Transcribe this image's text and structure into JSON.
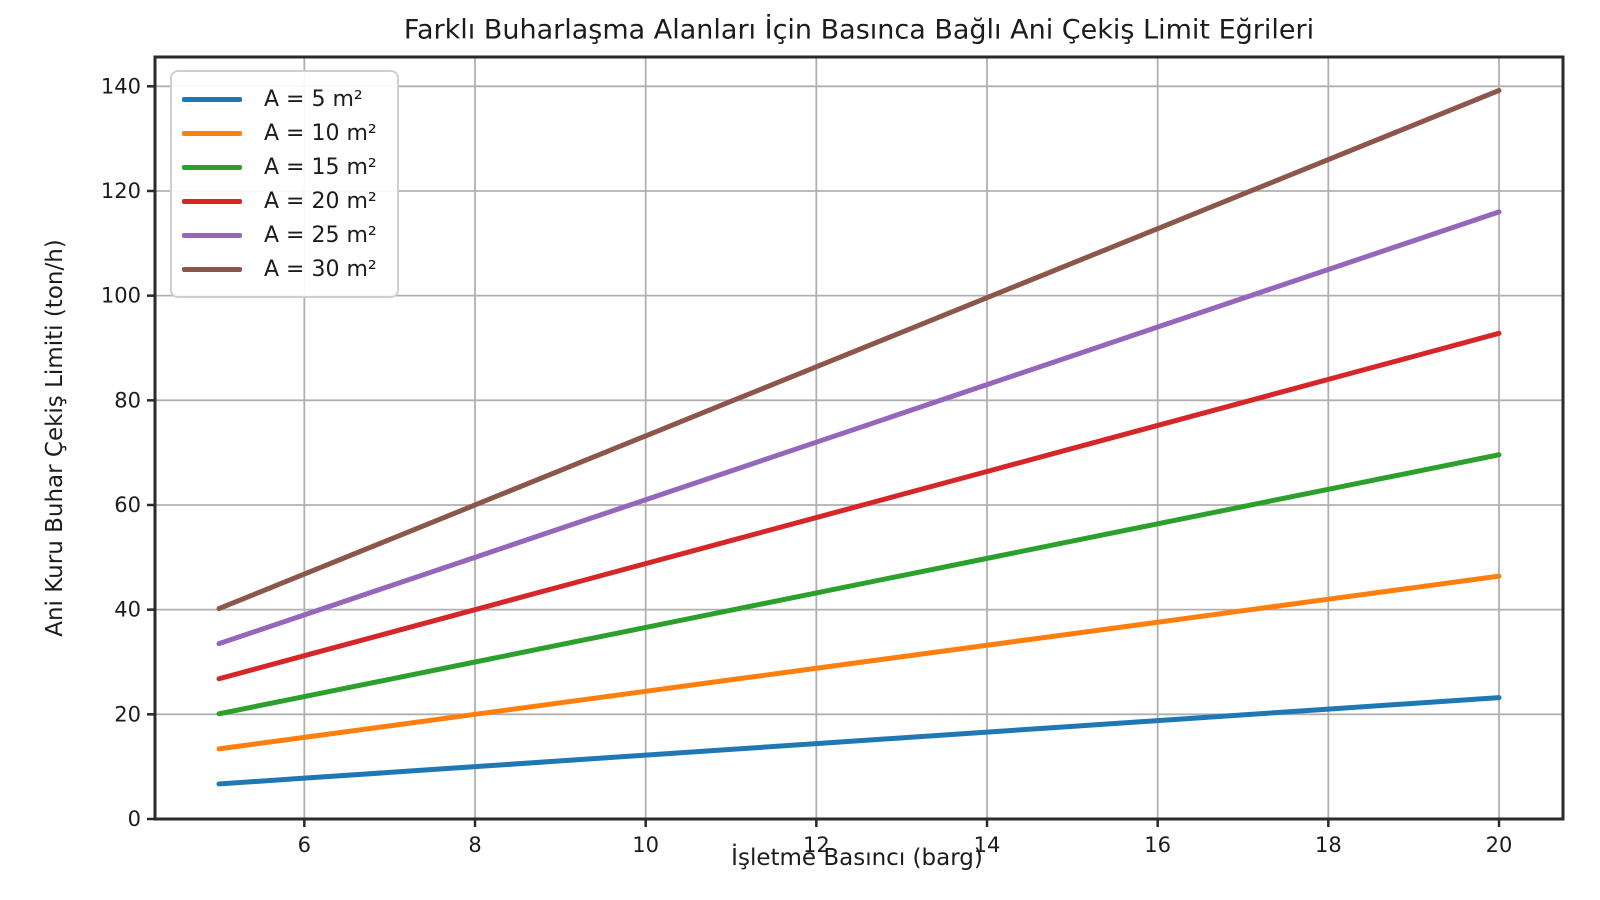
{
  "chart_data": {
    "type": "line",
    "title": "Farklı Buharlaşma Alanları İçin Basınca Bağlı Ani Çekiş Limit Eğrileri",
    "xlabel": "İşletme Basıncı (barg)",
    "ylabel": "Ani Kuru Buhar Çekiş Limiti (ton/h)",
    "x": [
      5,
      6,
      7,
      8,
      9,
      10,
      11,
      12,
      13,
      14,
      15,
      16,
      17,
      18,
      19,
      20
    ],
    "series": [
      {
        "name": "A = 5 m²",
        "color": "#1f77b4",
        "values": [
          6.7,
          7.8,
          8.9,
          10.0,
          11.1,
          12.2,
          13.3,
          14.4,
          15.5,
          16.6,
          17.7,
          18.8,
          19.9,
          21.0,
          22.1,
          23.2
        ]
      },
      {
        "name": "A = 10 m²",
        "color": "#ff7f0e",
        "values": [
          13.4,
          15.6,
          17.8,
          20.0,
          22.2,
          24.4,
          26.6,
          28.8,
          31.0,
          33.2,
          35.4,
          37.6,
          39.8,
          42.0,
          44.2,
          46.4
        ]
      },
      {
        "name": "A = 15 m²",
        "color": "#2ca02c",
        "values": [
          20.1,
          23.4,
          26.7,
          30.0,
          33.3,
          36.6,
          39.9,
          43.2,
          46.5,
          49.8,
          53.1,
          56.4,
          59.7,
          63.0,
          66.3,
          69.6
        ]
      },
      {
        "name": "A = 20 m²",
        "color": "#d62728",
        "values": [
          26.8,
          31.2,
          35.6,
          40.0,
          44.4,
          48.8,
          53.2,
          57.6,
          62.0,
          66.4,
          70.8,
          75.2,
          79.6,
          84.0,
          88.4,
          92.8
        ]
      },
      {
        "name": "A = 25 m²",
        "color": "#9467bd",
        "values": [
          33.5,
          39.0,
          44.5,
          50.0,
          55.5,
          61.0,
          66.5,
          72.0,
          77.5,
          83.0,
          88.5,
          94.0,
          99.5,
          105.0,
          110.5,
          116.0
        ]
      },
      {
        "name": "A = 30 m²",
        "color": "#8c564b",
        "values": [
          40.2,
          46.8,
          53.4,
          60.0,
          66.6,
          73.2,
          79.8,
          86.4,
          93.0,
          99.6,
          106.2,
          112.8,
          119.4,
          126.0,
          132.6,
          139.2
        ]
      }
    ],
    "xticks": [
      6,
      8,
      10,
      12,
      14,
      16,
      18,
      20
    ],
    "yticks": [
      0,
      20,
      40,
      60,
      80,
      100,
      120,
      140
    ],
    "xlim": [
      4.25,
      20.75
    ],
    "ylim": [
      0,
      145.6
    ],
    "grid": true,
    "legend_position": "upper-left"
  },
  "style": {
    "grid_color": "#b0b0b0",
    "spine_color": "#2a2a2a",
    "tick_color": "#2a2a2a",
    "text_color": "#1c1c1c",
    "line_width": 5
  }
}
